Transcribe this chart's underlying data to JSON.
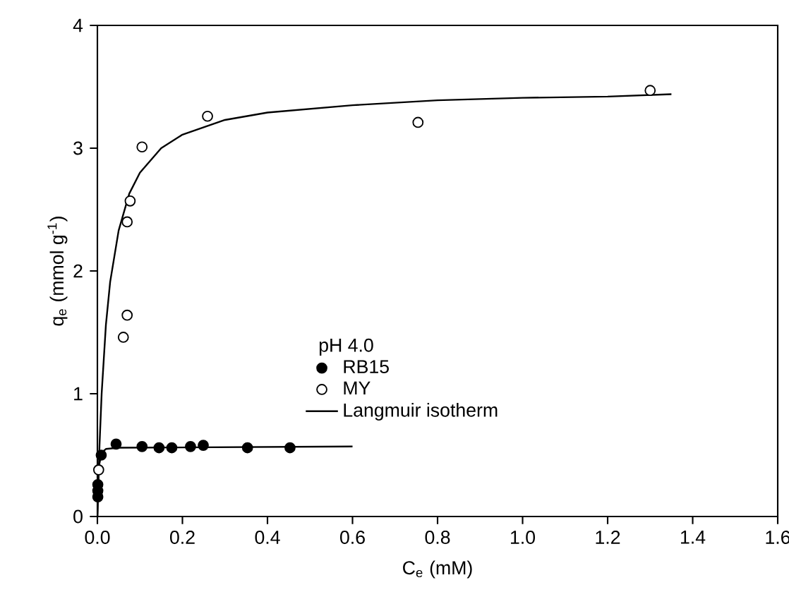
{
  "chart_data": {
    "type": "scatter",
    "xlabel": "C$_{e}$ (mM)",
    "ylabel": "q$_{e}$ (mmol g$^{-1}$)",
    "legend_title": "pH 4.0",
    "xlim": [
      0,
      1.6
    ],
    "ylim": [
      0,
      4
    ],
    "xticks": [
      {
        "value": 0,
        "label": "0.0"
      },
      {
        "value": 0.2,
        "label": "0.2"
      },
      {
        "value": 0.4,
        "label": "0.4"
      },
      {
        "value": 0.6,
        "label": "0.6"
      },
      {
        "value": 0.8,
        "label": "0.8"
      },
      {
        "value": 1.0,
        "label": "1.0"
      },
      {
        "value": 1.2,
        "label": "1.2"
      },
      {
        "value": 1.4,
        "label": "1.4"
      },
      {
        "value": 1.6,
        "label": "1.6"
      }
    ],
    "yticks": [
      0,
      1,
      2,
      3,
      4
    ],
    "grid": false,
    "legend": "center",
    "series": [
      {
        "name": "RB15",
        "type": "scatter",
        "marker": "circle",
        "color": "#000000",
        "x": [
          0.001,
          0.001,
          0.001,
          0.009,
          0.044,
          0.105,
          0.145,
          0.175,
          0.219,
          0.249,
          0.353,
          0.453
        ],
        "values": [
          0.16,
          0.21,
          0.26,
          0.5,
          0.59,
          0.57,
          0.56,
          0.56,
          0.57,
          0.58,
          0.56,
          0.56
        ]
      },
      {
        "name": "MY",
        "marker": "circle",
        "color": "#ffffff",
        "x": [
          0.003,
          0.061,
          0.07,
          0.07,
          0.077,
          0.105,
          0.259,
          0.754,
          1.3
        ],
        "values": [
          0.38,
          1.46,
          1.64,
          2.4,
          2.57,
          3.01,
          3.26,
          3.21,
          3.47
        ]
      },
      {
        "name": "Langmuir isotherm",
        "type": "line",
        "marker": "none",
        "color": "#000000",
        "x": [
          0,
          0.005,
          0.01,
          0.02,
          0.03,
          0.05,
          0.075,
          0.1,
          0.15,
          0.2,
          0.3,
          0.4,
          0.6,
          0.8,
          1.0,
          1.2,
          1.35
        ],
        "values": [
          0,
          0.58,
          1.0,
          1.56,
          1.91,
          2.33,
          2.63,
          2.8,
          3.0,
          3.11,
          3.23,
          3.29,
          3.35,
          3.39,
          3.41,
          3.42,
          3.44
        ]
      },
      {
        "type": "line",
        "marker": "none",
        "color": "#000000",
        "x": [
          0,
          0.003,
          0.01,
          0.02,
          0.05,
          0.6
        ],
        "values": [
          0,
          0.4,
          0.52,
          0.55,
          0.56,
          0.57
        ]
      }
    ]
  }
}
